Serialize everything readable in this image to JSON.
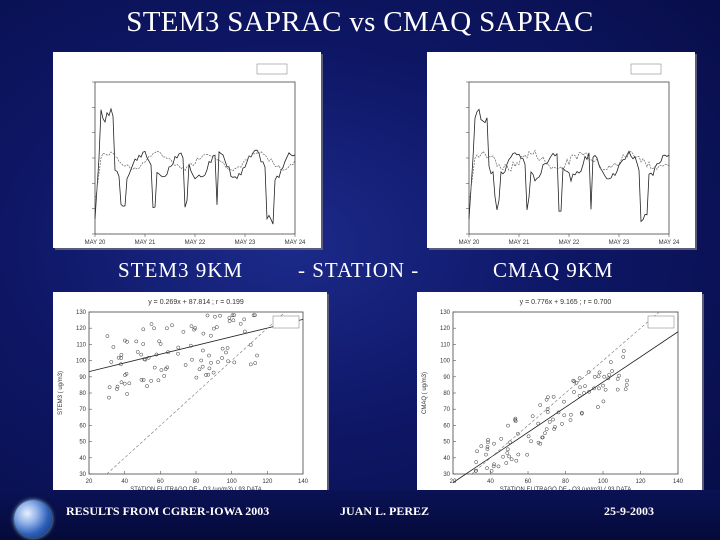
{
  "slide": {
    "title": "STEM3 SAPRAC vs CMAQ SAPRAC",
    "label_left": "STEM3 9KM",
    "label_mid": "- STATION -",
    "label_right": "CMAQ 9KM",
    "footer_left": "RESULTS FROM CGRER-IOWA 2003",
    "footer_mid": "JUAN L. PEREZ",
    "footer_right": "25-9-2003"
  },
  "panels": {
    "ts_left": {
      "xticks": [
        "MAY 20",
        "MAY 21",
        "MAY 22",
        "MAY 23",
        "MAY 24"
      ]
    },
    "ts_right": {
      "xticks": [
        "MAY 20",
        "MAY 21",
        "MAY 22",
        "MAY 23",
        "MAY 24"
      ]
    },
    "sc_left": {
      "eq": "y = 0.269x + 87.814  ;  r = 0.199",
      "xlabel": "STATION ELITRAGO DE - O3 (ug/m3) ( 93 DATA",
      "ylabel": "STEM3 ( ug/m3)",
      "xticks": [
        "20",
        "40",
        "60",
        "80",
        "100",
        "120",
        "140"
      ],
      "yticks": [
        "30",
        "40",
        "50",
        "60",
        "70",
        "80",
        "90",
        "100",
        "110",
        "120",
        "130"
      ]
    },
    "sc_right": {
      "eq": "y = 0.776x + 9.165  ;  r = 0.700",
      "xlabel": "STATION ELITRAGO DE - O3 (ug/m3) ( 93 DATA",
      "ylabel": "CMAQ ( ug/m3)",
      "xticks": [
        "20",
        "40",
        "60",
        "80",
        "100",
        "120",
        "140"
      ],
      "yticks": [
        "30",
        "40",
        "50",
        "60",
        "70",
        "80",
        "90",
        "100",
        "110",
        "120",
        "130"
      ]
    }
  }
}
